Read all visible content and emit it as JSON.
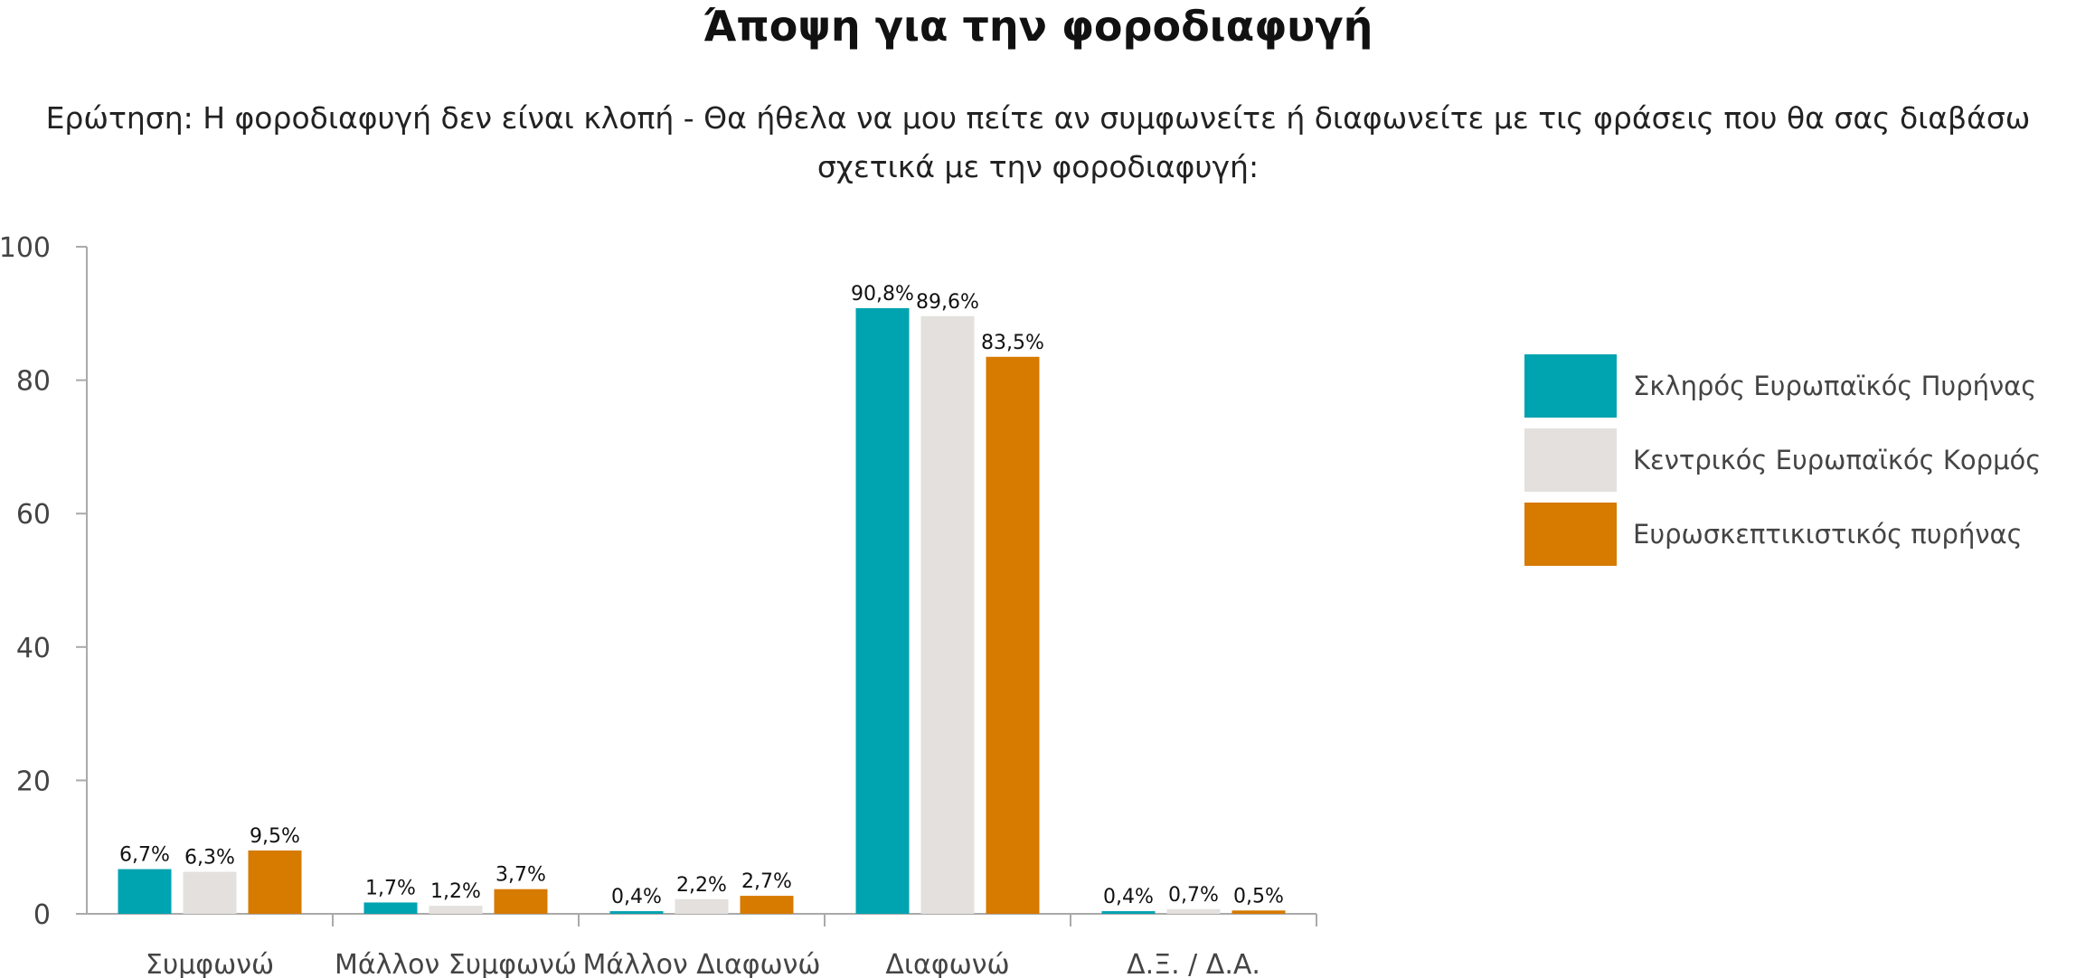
{
  "title": "Άποψη για την φοροδιαφυγή",
  "subtitle": {
    "line1": "Ερώτηση: Η φοροδιαφυγή δεν είναι κλοπή - Θα ήθελα να μου πείτε αν συμφωνείτε ή διαφωνείτε με τις φράσεις που θα σας διαβάσω",
    "line2": "σχετικά με την φοροδιαφυγή:"
  },
  "chart_data": {
    "type": "bar",
    "categories": [
      "Συμφωνώ",
      "Μάλλον Συμφωνώ",
      "Μάλλον Διαφωνώ",
      "Διαφωνώ",
      "Δ.Ξ. / Δ.Α."
    ],
    "series": [
      {
        "name": "Σκληρός Ευρωπαϊκός Πυρήνας",
        "color": "#00a3b0",
        "values": [
          6.7,
          1.7,
          0.4,
          90.8,
          0.4
        ],
        "labels": [
          "6,7%",
          "1,7%",
          "0,4%",
          "90,8%",
          "0,4%"
        ]
      },
      {
        "name": "Κεντρικός Ευρωπαϊκός Κορμός",
        "color": "#e3e0dd",
        "values": [
          6.3,
          1.2,
          2.2,
          89.6,
          0.7
        ],
        "labels": [
          "6,3%",
          "1,2%",
          "2,2%",
          "89,6%",
          "0,7%"
        ]
      },
      {
        "name": "Ευρωσκεπτικιστικός πυρήνας",
        "color": "#d67a00",
        "values": [
          9.5,
          3.7,
          2.7,
          83.5,
          0.5
        ],
        "labels": [
          "9,5%",
          "3,7%",
          "2,7%",
          "83,5%",
          "0,5%"
        ]
      }
    ],
    "yticks": [
      0,
      20,
      40,
      60,
      80,
      100
    ],
    "ylim": [
      0,
      100
    ],
    "legend_position": "right"
  }
}
